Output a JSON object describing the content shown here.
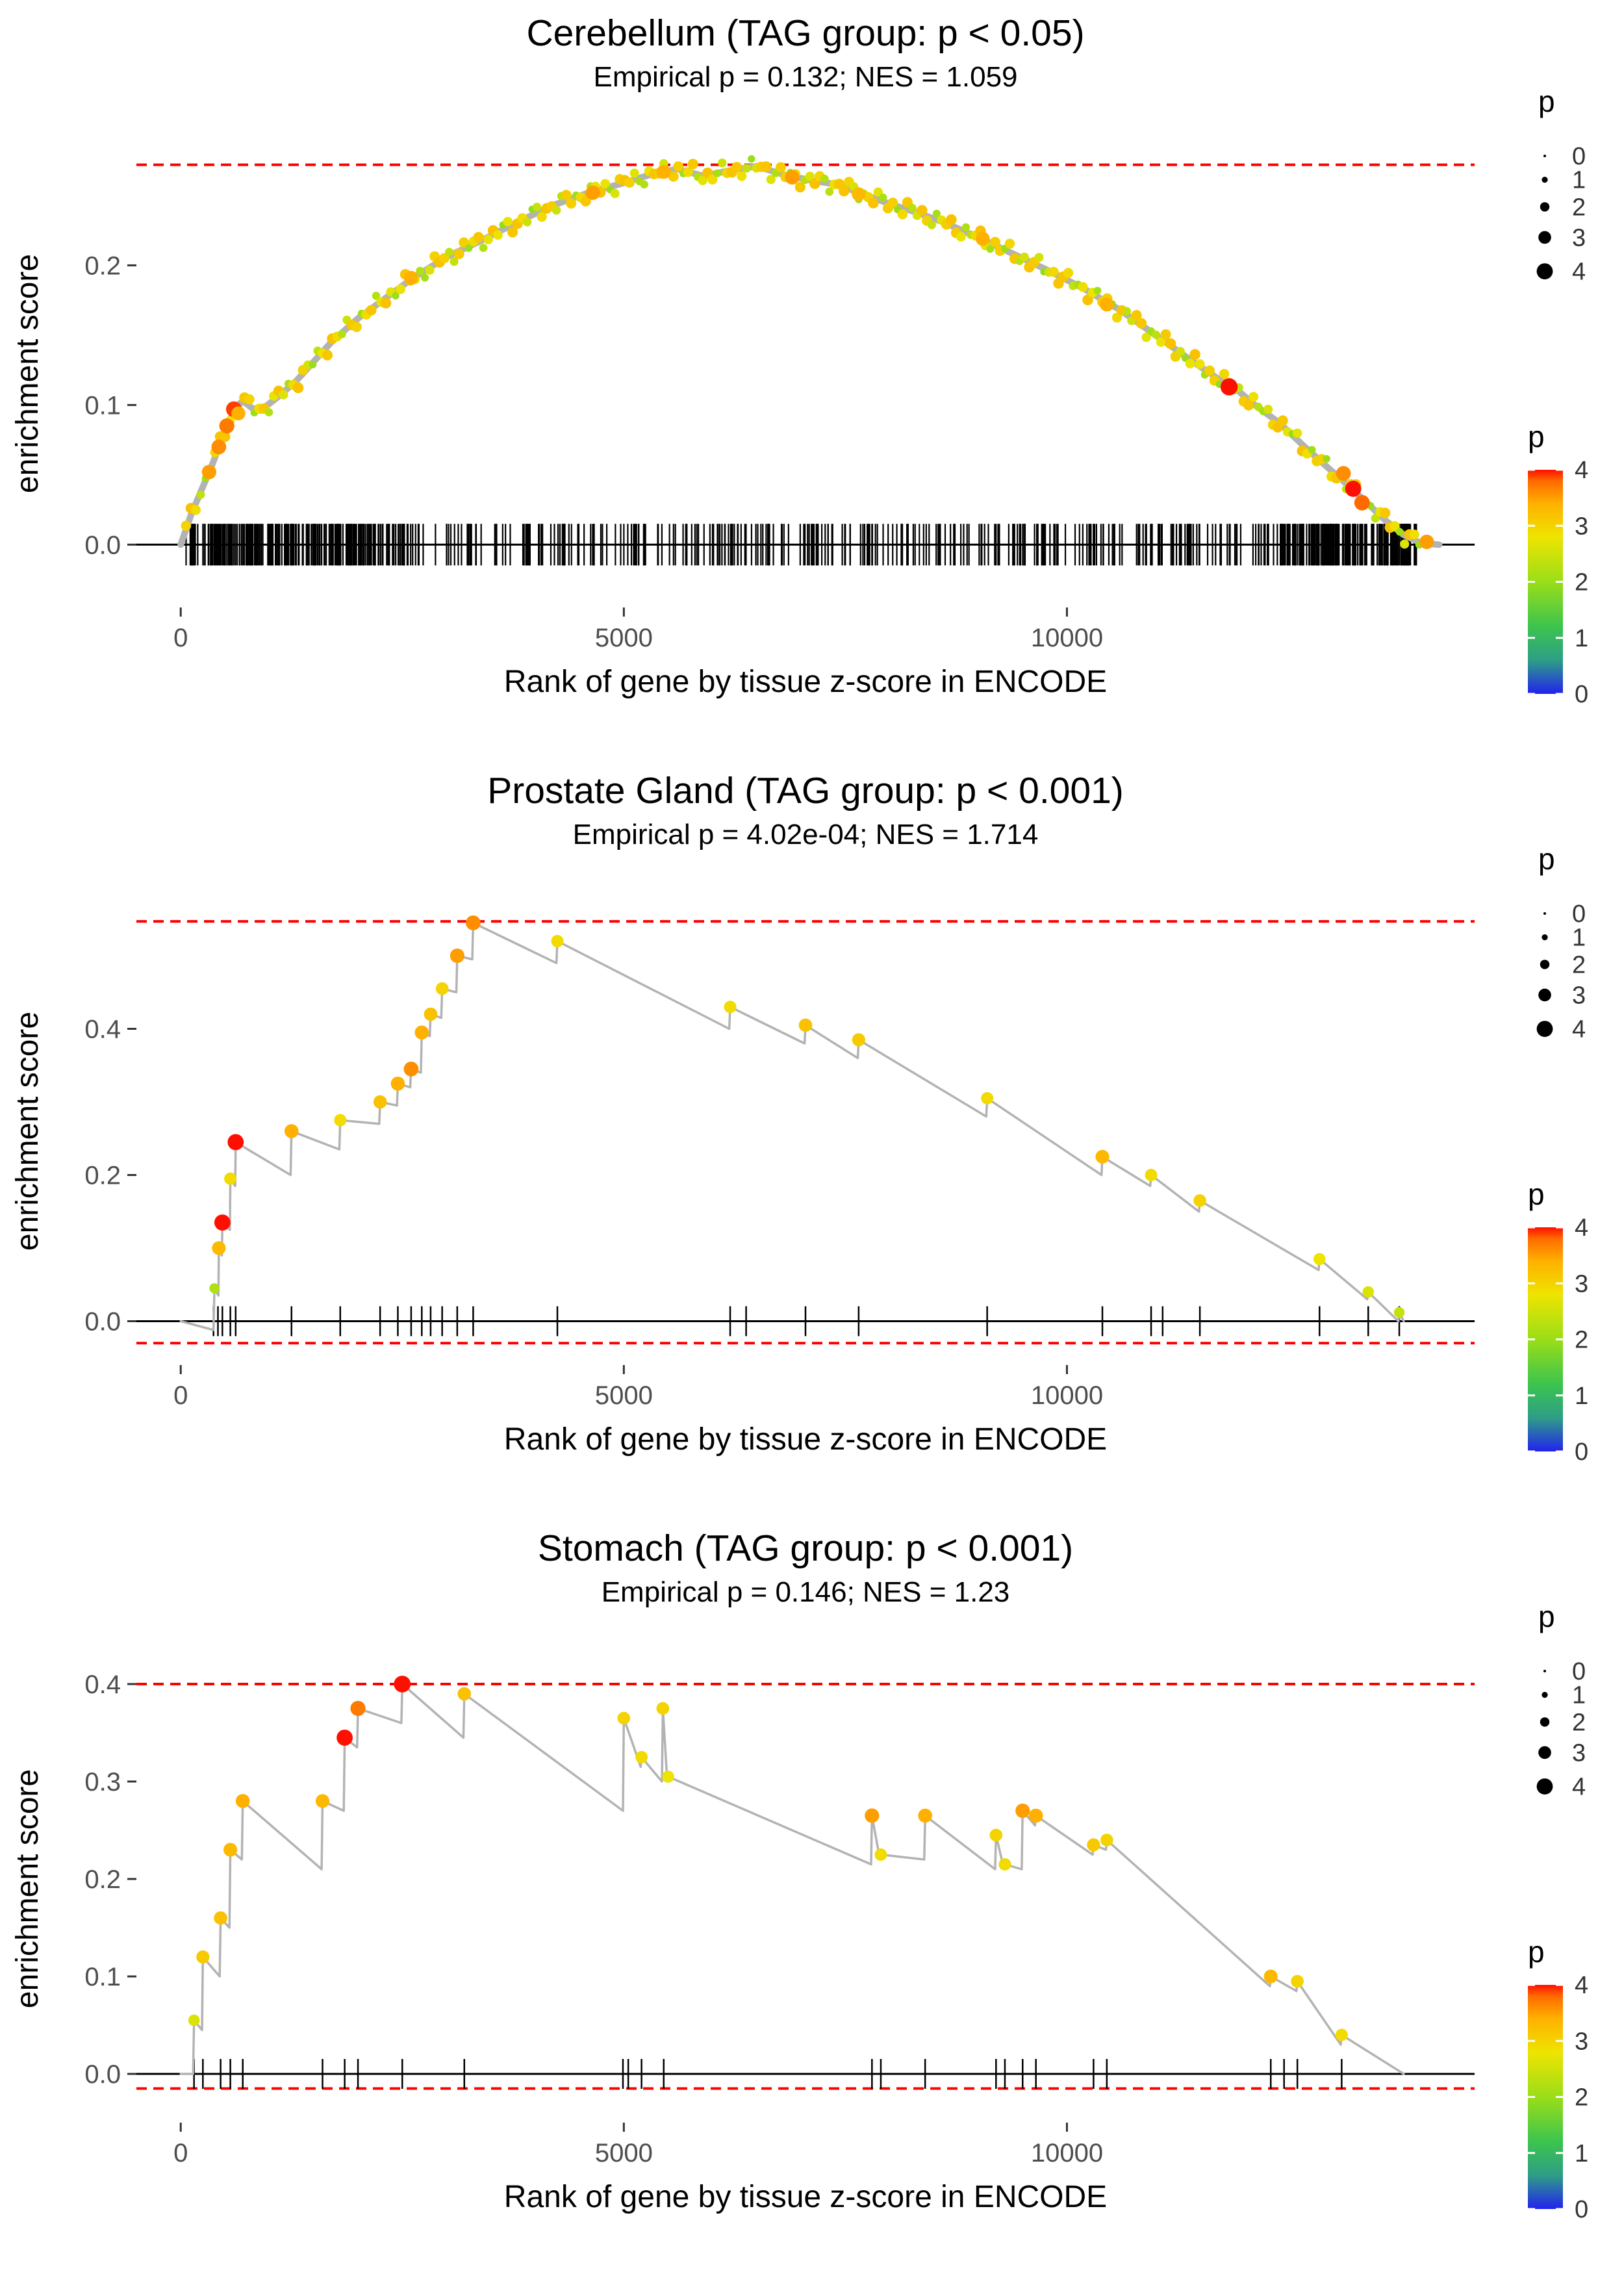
{
  "page": {
    "background": "#ffffff"
  },
  "palette": {
    "gradient_stops": [
      [
        0,
        "#2222ee"
      ],
      [
        0.6,
        "#2e9e86"
      ],
      [
        1.2,
        "#3cc44e"
      ],
      [
        2,
        "#9ade18"
      ],
      [
        2.8,
        "#eee400"
      ],
      [
        3.4,
        "#ffb000"
      ],
      [
        3.8,
        "#ff6a00"
      ],
      [
        4,
        "#ff0f00"
      ]
    ],
    "line_gray": "#b3b3b3",
    "dashed_red": "#ff0000",
    "axis_text": "#4d4d4d",
    "axis_tick": "#333333",
    "rug_black": "#000000",
    "legend_dot": "#000000"
  },
  "shared": {
    "xlabel": "Rank of gene by tissue z-score in ENCODE",
    "ylabel": "enrichment score",
    "x_ticks": [
      0,
      5000,
      10000
    ],
    "xlim": [
      -500,
      14600
    ],
    "size_legend": {
      "title": "p",
      "values": [
        0,
        1,
        2,
        3,
        4
      ]
    },
    "color_legend": {
      "title": "p",
      "min": 0,
      "max": 4,
      "labels": [
        4,
        3,
        2,
        1,
        0
      ]
    },
    "legend_position": "right",
    "grid": false
  },
  "chart_data": [
    {
      "type": "line",
      "title": "Cerebellum (TAG group: p < 0.05)",
      "subtitle": "Empirical p = 0.132; NES = 1.059",
      "empirical_p": "0.132",
      "nes": 1.059,
      "xlabel": "Rank of gene by tissue z-score in ENCODE",
      "ylabel": "enrichment score",
      "xlim": [
        -500,
        14600
      ],
      "x_ticks": [
        0,
        5000,
        10000
      ],
      "ylim": [
        -0.045,
        0.29
      ],
      "y_ticks": [
        0,
        0.1,
        0.2
      ],
      "hlines": [
        0.272
      ],
      "curve": [
        [
          0,
          0
        ],
        [
          120,
          0.022
        ],
        [
          240,
          0.04
        ],
        [
          360,
          0.058
        ],
        [
          480,
          0.078
        ],
        [
          560,
          0.09
        ],
        [
          620,
          0.098
        ],
        [
          700,
          0.103
        ],
        [
          800,
          0.098
        ],
        [
          900,
          0.096
        ],
        [
          1000,
          0.101
        ],
        [
          1100,
          0.106
        ],
        [
          1300,
          0.117
        ],
        [
          1500,
          0.131
        ],
        [
          1700,
          0.145
        ],
        [
          2000,
          0.162
        ],
        [
          2300,
          0.176
        ],
        [
          2600,
          0.19
        ],
        [
          3000,
          0.206
        ],
        [
          3400,
          0.218
        ],
        [
          3800,
          0.231
        ],
        [
          4200,
          0.243
        ],
        [
          4600,
          0.252
        ],
        [
          5000,
          0.259
        ],
        [
          5300,
          0.265
        ],
        [
          5600,
          0.269
        ],
        [
          5900,
          0.264
        ],
        [
          6200,
          0.268
        ],
        [
          6500,
          0.271
        ],
        [
          6800,
          0.265
        ],
        [
          7100,
          0.261
        ],
        [
          7400,
          0.258
        ],
        [
          7700,
          0.251
        ],
        [
          8000,
          0.244
        ],
        [
          8300,
          0.238
        ],
        [
          8600,
          0.231
        ],
        [
          9000,
          0.22
        ],
        [
          9400,
          0.208
        ],
        [
          9800,
          0.196
        ],
        [
          10200,
          0.183
        ],
        [
          10600,
          0.168
        ],
        [
          11000,
          0.15
        ],
        [
          11400,
          0.132
        ],
        [
          11700,
          0.119
        ],
        [
          11900,
          0.112
        ],
        [
          12100,
          0.101
        ],
        [
          12400,
          0.087
        ],
        [
          12700,
          0.069
        ],
        [
          13000,
          0.052
        ],
        [
          13200,
          0.041
        ],
        [
          13400,
          0.029
        ],
        [
          13600,
          0.017
        ],
        [
          13800,
          0.007
        ],
        [
          14000,
          0.001
        ],
        [
          14200,
          0
        ]
      ],
      "points": [
        [
          320,
          0.052,
          3.5
        ],
        [
          430,
          0.07,
          3.6
        ],
        [
          520,
          0.085,
          3.7
        ],
        [
          600,
          0.097,
          3.9
        ],
        [
          650,
          0.094,
          3.4
        ],
        [
          2600,
          0.191,
          3.4
        ],
        [
          4650,
          0.252,
          3.5
        ],
        [
          5450,
          0.267,
          3.4
        ],
        [
          6900,
          0.263,
          3.5
        ],
        [
          7650,
          0.251,
          3.3
        ],
        [
          9050,
          0.219,
          3.4
        ],
        [
          10450,
          0.172,
          3.4
        ],
        [
          11830,
          0.113,
          4.3
        ],
        [
          13120,
          0.051,
          3.6
        ],
        [
          13230,
          0.04,
          4
        ],
        [
          13330,
          0.03,
          3.8
        ],
        [
          14060,
          0.002,
          3.5
        ]
      ],
      "dense_points": {
        "x_start": 60,
        "x_end": 14020,
        "step": 55,
        "jitter": 0.0042,
        "p_range": [
          1.8,
          3.3
        ]
      },
      "rug": {
        "type": "dense",
        "count": 430,
        "range": [
          20,
          13950
        ],
        "extra_left": 140,
        "extra_left_range": [
          100,
          2600
        ],
        "extra_right": 150,
        "extra_right_range": [
          12400,
          13950
        ]
      }
    },
    {
      "type": "line",
      "title": "Prostate Gland (TAG group: p < 0.001)",
      "subtitle": "Empirical p = 4.02e-04; NES = 1.714",
      "empirical_p": "4.02e-04",
      "nes": 1.714,
      "xlabel": "Rank of gene by tissue z-score in ENCODE",
      "ylabel": "enrichment score",
      "xlim": [
        -500,
        14600
      ],
      "x_ticks": [
        0,
        5000,
        10000
      ],
      "ylim": [
        -0.06,
        0.58
      ],
      "y_ticks": [
        0,
        0.2,
        0.4
      ],
      "hlines": [
        0.547,
        -0.03
      ],
      "curve": [
        [
          0,
          0
        ],
        [
          370,
          -0.012
        ],
        [
          380,
          0.045
        ],
        [
          425,
          0.035
        ],
        [
          430,
          0.1
        ],
        [
          465,
          0.09
        ],
        [
          470,
          0.135
        ],
        [
          555,
          0.125
        ],
        [
          560,
          0.195
        ],
        [
          615,
          0.185
        ],
        [
          620,
          0.245
        ],
        [
          1240,
          0.2
        ],
        [
          1250,
          0.26
        ],
        [
          1790,
          0.235
        ],
        [
          1800,
          0.275
        ],
        [
          2240,
          0.27
        ],
        [
          2250,
          0.3
        ],
        [
          2440,
          0.295
        ],
        [
          2450,
          0.325
        ],
        [
          2590,
          0.32
        ],
        [
          2600,
          0.345
        ],
        [
          2710,
          0.34
        ],
        [
          2720,
          0.395
        ],
        [
          2810,
          0.39
        ],
        [
          2820,
          0.42
        ],
        [
          2940,
          0.415
        ],
        [
          2950,
          0.455
        ],
        [
          3110,
          0.45
        ],
        [
          3120,
          0.5
        ],
        [
          3290,
          0.495
        ],
        [
          3300,
          0.545
        ],
        [
          4240,
          0.49
        ],
        [
          4250,
          0.52
        ],
        [
          6190,
          0.4
        ],
        [
          6200,
          0.43
        ],
        [
          7040,
          0.38
        ],
        [
          7050,
          0.405
        ],
        [
          7640,
          0.36
        ],
        [
          7650,
          0.385
        ],
        [
          9090,
          0.28
        ],
        [
          9100,
          0.305
        ],
        [
          10390,
          0.2
        ],
        [
          10400,
          0.225
        ],
        [
          10940,
          0.185
        ],
        [
          10950,
          0.2
        ],
        [
          11490,
          0.15
        ],
        [
          11500,
          0.165
        ],
        [
          12840,
          0.07
        ],
        [
          12850,
          0.085
        ],
        [
          13390,
          0.03
        ],
        [
          13400,
          0.04
        ],
        [
          13740,
          0
        ],
        [
          13750,
          0.012
        ],
        [
          13800,
          0
        ]
      ],
      "points": [
        [
          380,
          0.045,
          2.2
        ],
        [
          430,
          0.1,
          3.3
        ],
        [
          470,
          0.135,
          4
        ],
        [
          560,
          0.195,
          2.9
        ],
        [
          620,
          0.245,
          4
        ],
        [
          1250,
          0.26,
          3.4
        ],
        [
          1800,
          0.275,
          2.9
        ],
        [
          2250,
          0.3,
          3.2
        ],
        [
          2450,
          0.325,
          3.4
        ],
        [
          2600,
          0.345,
          3.6
        ],
        [
          2720,
          0.395,
          3.4
        ],
        [
          2820,
          0.42,
          3.2
        ],
        [
          2950,
          0.455,
          3
        ],
        [
          3120,
          0.5,
          3.5
        ],
        [
          3300,
          0.545,
          3.6
        ],
        [
          4250,
          0.52,
          2.9
        ],
        [
          6200,
          0.43,
          2.9
        ],
        [
          7050,
          0.405,
          3.2
        ],
        [
          7650,
          0.385,
          3.1
        ],
        [
          9100,
          0.305,
          2.9
        ],
        [
          10400,
          0.225,
          3.3
        ],
        [
          10950,
          0.2,
          2.9
        ],
        [
          11500,
          0.165,
          3
        ],
        [
          12850,
          0.085,
          2.8
        ],
        [
          13400,
          0.04,
          2.6
        ],
        [
          13750,
          0.012,
          2.4
        ]
      ],
      "rug": {
        "type": "list",
        "positions": [
          370,
          420,
          470,
          560,
          620,
          1250,
          1800,
          2250,
          2450,
          2600,
          2720,
          2820,
          2950,
          3120,
          3300,
          4250,
          6200,
          6380,
          7050,
          7650,
          9100,
          10400,
          10950,
          11080,
          11500,
          12850,
          13400,
          13750
        ]
      }
    },
    {
      "type": "line",
      "title": "Stomach (TAG group: p < 0.001)",
      "subtitle": "Empirical p = 0.146; NES = 1.23",
      "empirical_p": "0.146",
      "nes": 1.23,
      "xlabel": "Rank of gene by tissue z-score in ENCODE",
      "ylabel": "enrichment score",
      "xlim": [
        -500,
        14600
      ],
      "x_ticks": [
        0,
        5000,
        10000
      ],
      "ylim": [
        -0.05,
        0.43
      ],
      "y_ticks": [
        0,
        0.1,
        0.2,
        0.3,
        0.4
      ],
      "hlines": [
        0.4,
        -0.015
      ],
      "curve": [
        [
          0,
          0
        ],
        [
          140,
          0
        ],
        [
          150,
          0.055
        ],
        [
          240,
          0.045
        ],
        [
          250,
          0.12
        ],
        [
          440,
          0.1
        ],
        [
          450,
          0.16
        ],
        [
          550,
          0.15
        ],
        [
          560,
          0.23
        ],
        [
          690,
          0.22
        ],
        [
          700,
          0.28
        ],
        [
          1590,
          0.21
        ],
        [
          1600,
          0.28
        ],
        [
          1840,
          0.27
        ],
        [
          1850,
          0.345
        ],
        [
          1990,
          0.335
        ],
        [
          2000,
          0.375
        ],
        [
          2490,
          0.36
        ],
        [
          2500,
          0.4
        ],
        [
          3190,
          0.345
        ],
        [
          3200,
          0.39
        ],
        [
          4990,
          0.27
        ],
        [
          5000,
          0.365
        ],
        [
          5190,
          0.315
        ],
        [
          5200,
          0.325
        ],
        [
          5430,
          0.3
        ],
        [
          5440,
          0.375
        ],
        [
          5490,
          0.3
        ],
        [
          5500,
          0.305
        ],
        [
          7790,
          0.215
        ],
        [
          7800,
          0.265
        ],
        [
          7890,
          0.22
        ],
        [
          7900,
          0.225
        ],
        [
          8390,
          0.22
        ],
        [
          8400,
          0.265
        ],
        [
          9190,
          0.21
        ],
        [
          9200,
          0.245
        ],
        [
          9290,
          0.21
        ],
        [
          9300,
          0.215
        ],
        [
          9490,
          0.21
        ],
        [
          9500,
          0.27
        ],
        [
          9640,
          0.255
        ],
        [
          9650,
          0.265
        ],
        [
          10290,
          0.225
        ],
        [
          10300,
          0.235
        ],
        [
          10440,
          0.23
        ],
        [
          10450,
          0.24
        ],
        [
          12290,
          0.09
        ],
        [
          12300,
          0.1
        ],
        [
          12590,
          0.085
        ],
        [
          12600,
          0.095
        ],
        [
          13090,
          0.03
        ],
        [
          13100,
          0.04
        ],
        [
          13800,
          0
        ]
      ],
      "points": [
        [
          150,
          0.055,
          2.6
        ],
        [
          250,
          0.12,
          3.1
        ],
        [
          450,
          0.16,
          3.2
        ],
        [
          560,
          0.23,
          3.3
        ],
        [
          700,
          0.28,
          3.4
        ],
        [
          1600,
          0.28,
          3.3
        ],
        [
          1850,
          0.345,
          4
        ],
        [
          2000,
          0.375,
          3.7
        ],
        [
          2500,
          0.4,
          4.2
        ],
        [
          3200,
          0.39,
          3.2
        ],
        [
          5000,
          0.365,
          3
        ],
        [
          5200,
          0.325,
          2.9
        ],
        [
          5440,
          0.375,
          3
        ],
        [
          5500,
          0.305,
          2.8
        ],
        [
          7800,
          0.265,
          3.5
        ],
        [
          7900,
          0.225,
          2.9
        ],
        [
          8400,
          0.265,
          3.4
        ],
        [
          9200,
          0.245,
          3
        ],
        [
          9300,
          0.215,
          2.9
        ],
        [
          9500,
          0.27,
          3.5
        ],
        [
          9650,
          0.265,
          3.4
        ],
        [
          10300,
          0.235,
          3.1
        ],
        [
          10450,
          0.24,
          3
        ],
        [
          12300,
          0.1,
          3.3
        ],
        [
          12600,
          0.095,
          3
        ],
        [
          13100,
          0.04,
          2.9
        ]
      ],
      "rug": {
        "type": "list",
        "positions": [
          150,
          250,
          450,
          560,
          700,
          1600,
          1850,
          2000,
          2500,
          3200,
          4990,
          5050,
          5200,
          5450,
          7800,
          7900,
          8400,
          9200,
          9300,
          9500,
          9650,
          10300,
          10450,
          12300,
          12450,
          12600,
          13100
        ]
      }
    }
  ]
}
